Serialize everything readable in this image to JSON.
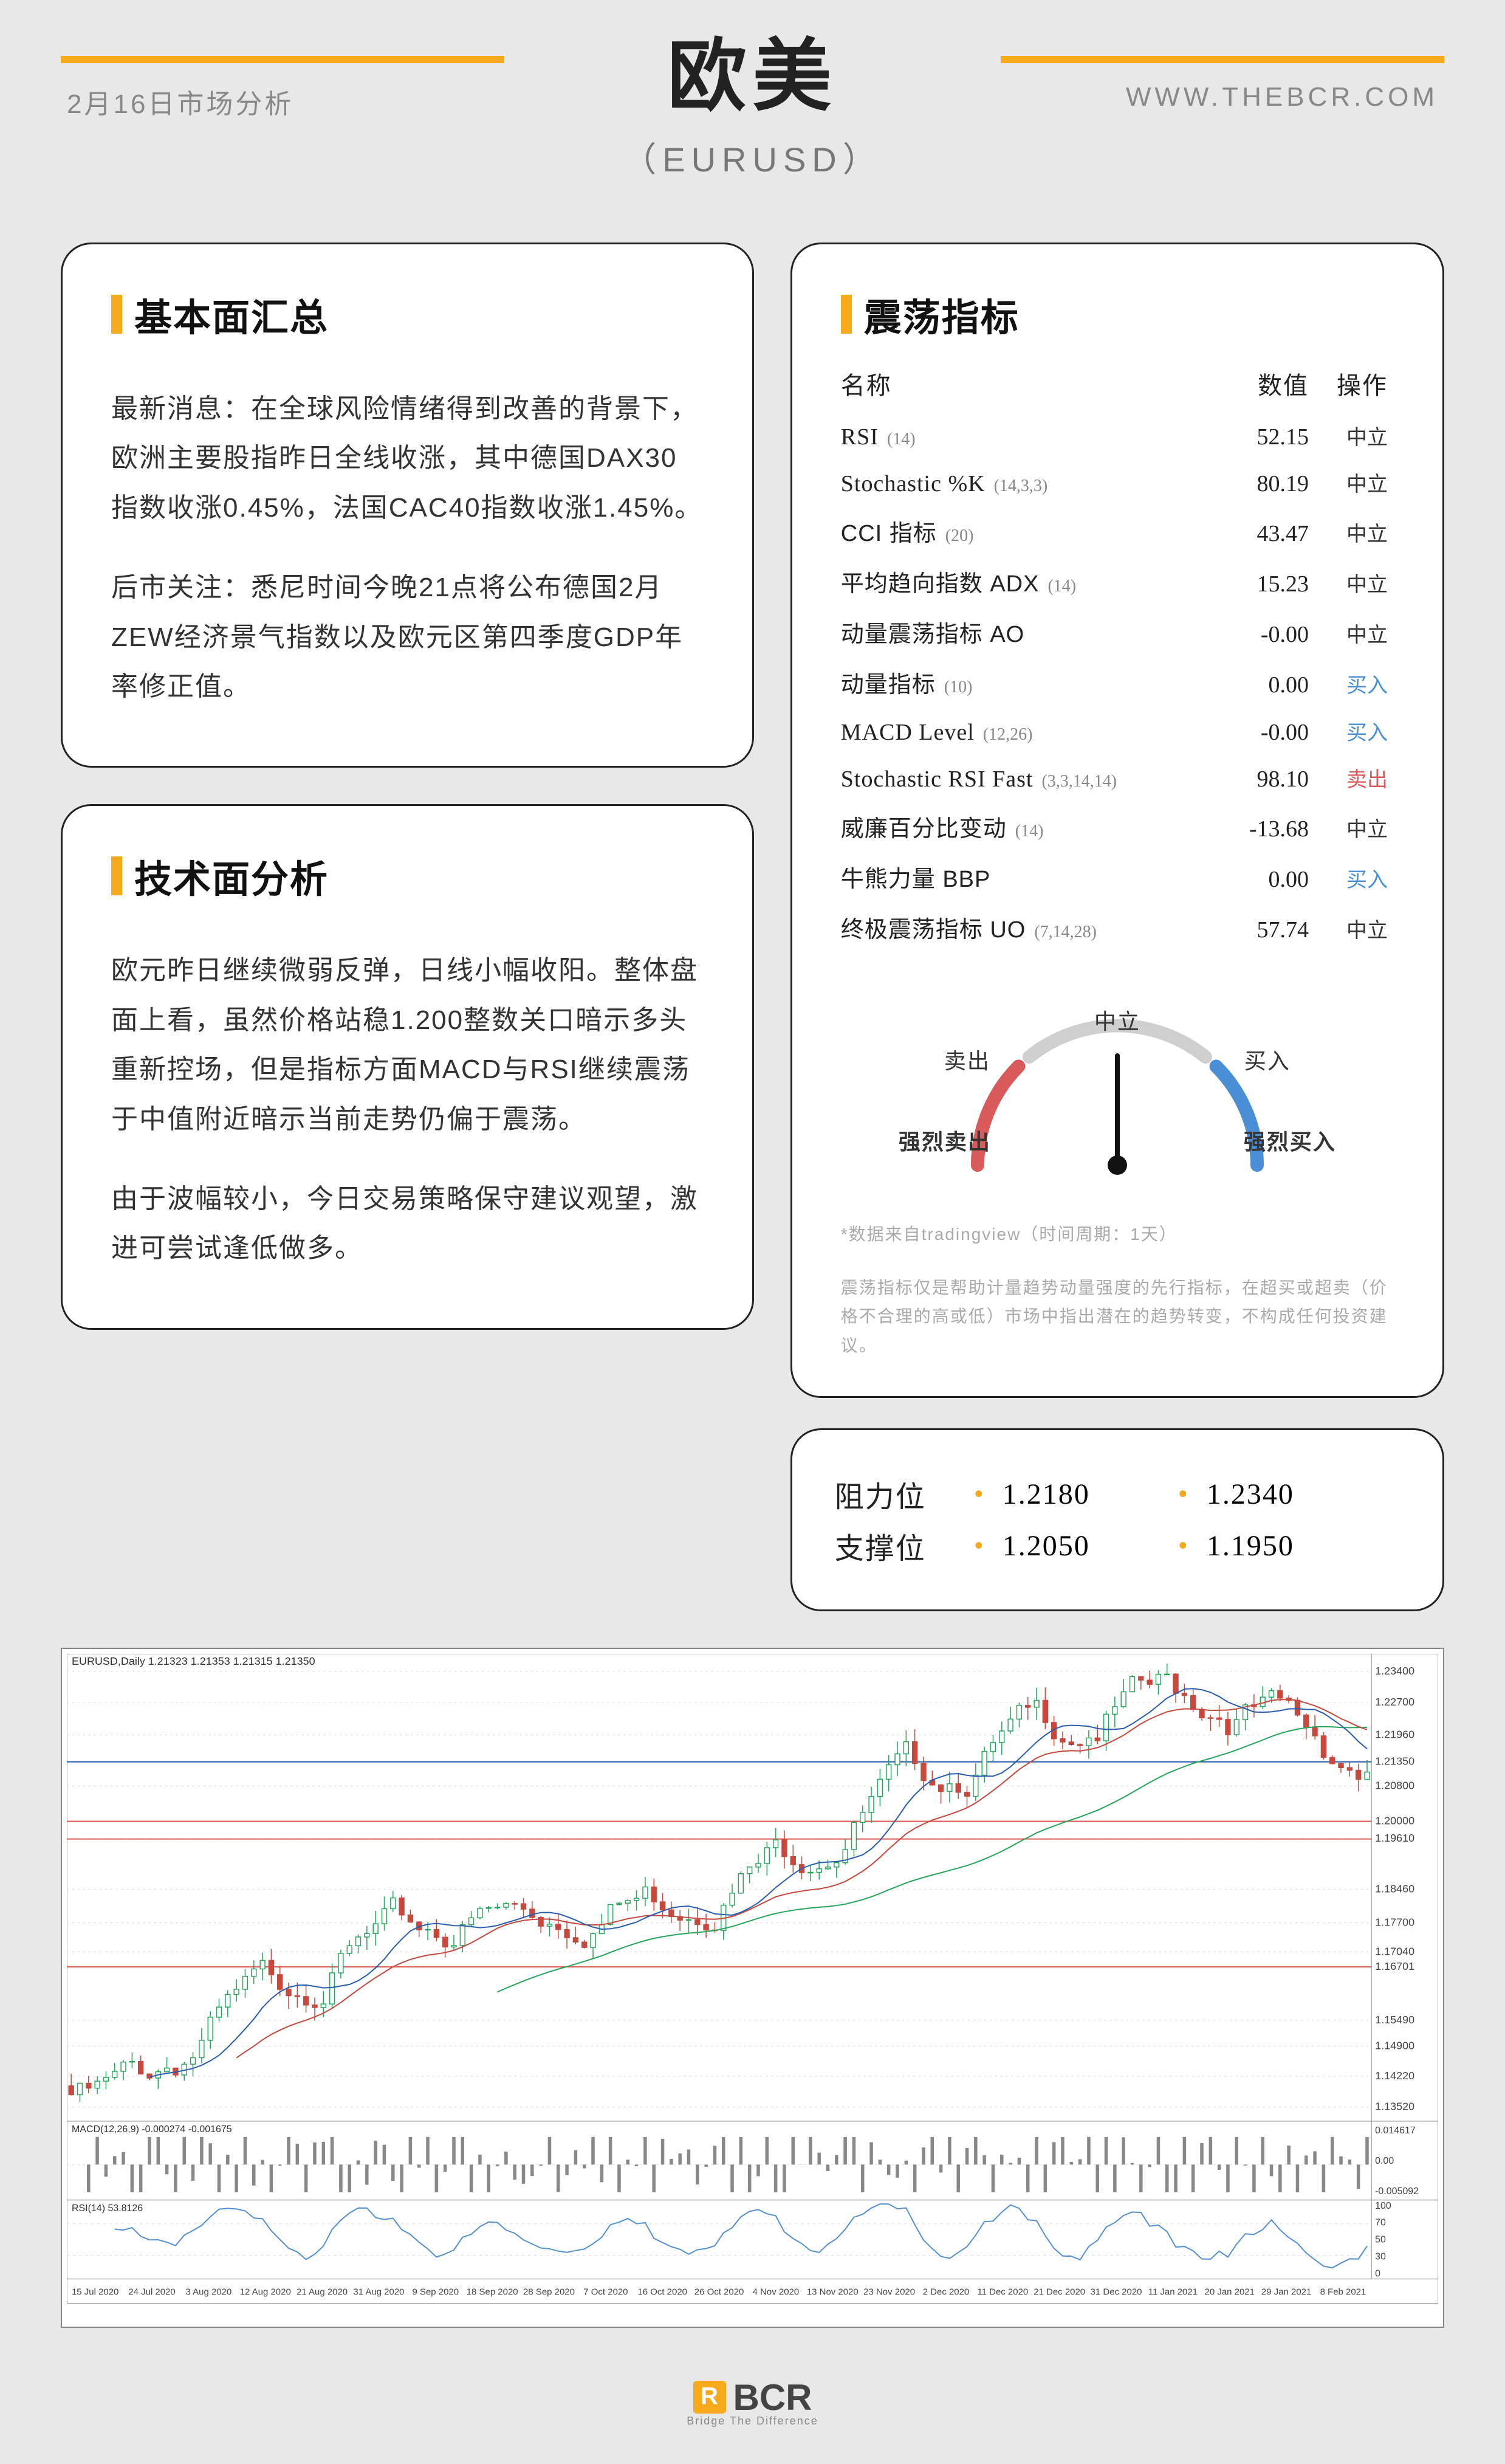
{
  "header": {
    "date_label": "2月16日市场分析",
    "title": "欧美",
    "subtitle": "（EURUSD）",
    "website": "WWW.THEBCR.COM",
    "accent_color": "#f6a91a"
  },
  "fundamental": {
    "title": "基本面汇总",
    "p1": "最新消息：在全球风险情绪得到改善的背景下，欧洲主要股指昨日全线收涨，其中德国DAX30指数收涨0.45%，法国CAC40指数收涨1.45%。",
    "p2": "后市关注：悉尼时间今晚21点将公布德国2月ZEW经济景气指数以及欧元区第四季度GDP年率修正值。"
  },
  "technical": {
    "title": "技术面分析",
    "p1": "欧元昨日继续微弱反弹，日线小幅收阳。整体盘面上看，虽然价格站稳1.200整数关口暗示多头重新控场，但是指标方面MACD与RSI继续震荡于中值附近暗示当前走势仍偏于震荡。",
    "p2": "由于波幅较小，今日交易策略保守建议观望，激进可尝试逢低做多。"
  },
  "oscillators": {
    "title": "震荡指标",
    "head_name": "名称",
    "head_value": "数值",
    "head_action": "操作",
    "rows": [
      {
        "name": "RSI",
        "param": "(14)",
        "value": "52.15",
        "action": "中立",
        "cls": "neut"
      },
      {
        "name": "Stochastic %K",
        "param": "(14,3,3)",
        "value": "80.19",
        "action": "中立",
        "cls": "neut"
      },
      {
        "name": "CCI 指标",
        "param": "(20)",
        "value": "43.47",
        "action": "中立",
        "cls": "neut",
        "cn": true
      },
      {
        "name": "平均趋向指数 ADX",
        "param": "(14)",
        "value": "15.23",
        "action": "中立",
        "cls": "neut",
        "cn": true
      },
      {
        "name": "动量震荡指标 AO",
        "param": "",
        "value": "-0.00",
        "action": "中立",
        "cls": "neut",
        "cn": true
      },
      {
        "name": "动量指标",
        "param": "(10)",
        "value": "0.00",
        "action": "买入",
        "cls": "buy",
        "cn": true
      },
      {
        "name": "MACD Level",
        "param": "(12,26)",
        "value": "-0.00",
        "action": "买入",
        "cls": "buy"
      },
      {
        "name": "Stochastic RSI Fast",
        "param": "(3,3,14,14)",
        "value": "98.10",
        "action": "卖出",
        "cls": "sell"
      },
      {
        "name": "威廉百分比变动",
        "param": "(14)",
        "value": "-13.68",
        "action": "中立",
        "cls": "neut",
        "cn": true
      },
      {
        "name": "牛熊力量 BBP",
        "param": "",
        "value": "0.00",
        "action": "买入",
        "cls": "buy",
        "cn": true
      },
      {
        "name": "终极震荡指标 UO",
        "param": "(7,14,28)",
        "value": "57.74",
        "action": "中立",
        "cls": "neut",
        "cn": true
      }
    ],
    "gauge": {
      "lbl_neutral": "中立",
      "lbl_sell": "卖出",
      "lbl_buy": "买入",
      "lbl_strong_sell": "强烈卖出",
      "lbl_strong_buy": "强烈买入",
      "angle_deg": 0,
      "arc_sell_color": "#d85a5a",
      "arc_neutral_color": "#cfcfcf",
      "arc_buy_color": "#4a8fd6"
    },
    "disclaimer1": "*数据来自tradingview（时间周期：1天）",
    "disclaimer2": "震荡指标仅是帮助计量趋势动量强度的先行指标，在超买或超卖（价格不合理的高或低）市场中指出潜在的趋势转变，不构成任何投资建议。"
  },
  "levels": {
    "resistance_label": "阻力位",
    "support_label": "支撑位",
    "r1": "1.2180",
    "r2": "1.2340",
    "s1": "1.2050",
    "s2": "1.1950",
    "dot_color": "#f6a91a"
  },
  "chart": {
    "header": "EURUSD,Daily 1.21323 1.21353 1.21315 1.21350",
    "macd_header": "MACD(12,26,9) -0.000274 -0.001675",
    "rsi_header": "RSI(14) 53.8126",
    "price_levels": [
      "1.23400",
      "1.22700",
      "1.21960",
      "1.21350",
      "1.20800",
      "1.20000",
      "1.19610",
      "1.18460",
      "1.17700",
      "1.17040",
      "1.16701",
      "1.15490",
      "1.14900",
      "1.14220",
      "1.13520"
    ],
    "macd_levels": [
      "0.014617",
      "0.00",
      "-0.005092"
    ],
    "rsi_levels": [
      "100",
      "70",
      "50",
      "30",
      "0"
    ],
    "dates": [
      "15 Jul 2020",
      "24 Jul 2020",
      "3 Aug 2020",
      "12 Aug 2020",
      "21 Aug 2020",
      "31 Aug 2020",
      "9 Sep 2020",
      "18 Sep 2020",
      "28 Sep 2020",
      "7 Oct 2020",
      "16 Oct 2020",
      "26 Oct 2020",
      "4 Nov 2020",
      "13 Nov 2020",
      "23 Nov 2020",
      "2 Dec 2020",
      "11 Dec 2020",
      "21 Dec 2020",
      "31 Dec 2020",
      "11 Jan 2021",
      "20 Jan 2021",
      "29 Jan 2021",
      "8 Feb 2021"
    ],
    "colors": {
      "up_body": "#ffffff",
      "up_border": "#26a65b",
      "down_body": "#c7483c",
      "down_border": "#c7483c",
      "ma_blue": "#2a5db0",
      "ma_red": "#c7483c",
      "ma_green": "#26a65b",
      "level_red": "#d9534f",
      "level_blue": "#2a5db0",
      "grid": "#d9d9d9",
      "axis_text": "#444",
      "rsi_line": "#5590d0"
    },
    "price_ymin": 1.132,
    "price_ymax": 1.238,
    "candles_n": 150,
    "h_lines": [
      {
        "y": 1.2,
        "color": "#d9534f",
        "w": 2
      },
      {
        "y": 1.196,
        "color": "#d9534f",
        "w": 2
      },
      {
        "y": 1.167,
        "color": "#d9534f",
        "w": 2
      },
      {
        "y": 1.2135,
        "color": "#2a5db0",
        "w": 2
      }
    ]
  },
  "footer": {
    "brand": "BCR",
    "tagline": "Bridge The Difference"
  }
}
